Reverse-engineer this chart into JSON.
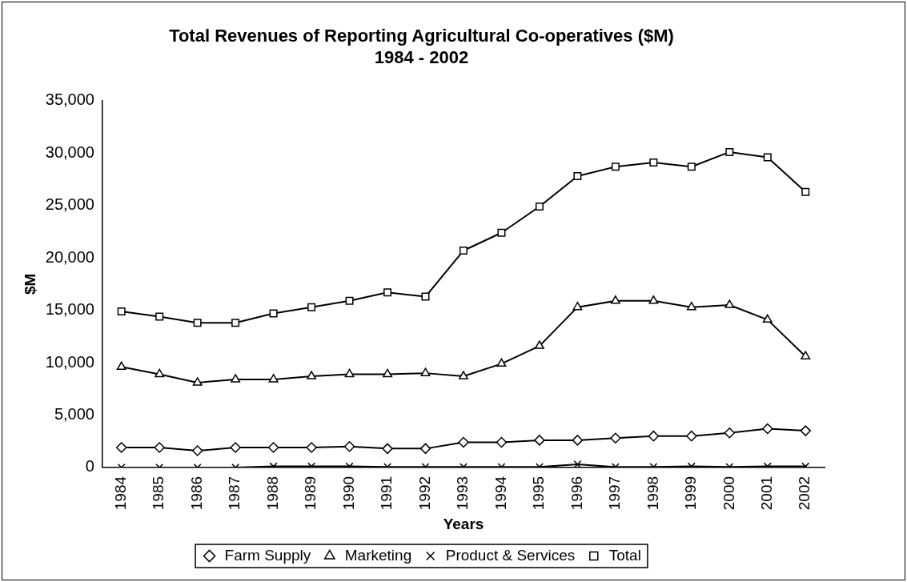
{
  "chart_data": {
    "type": "line",
    "title": "Total Revenues of Reporting Agricultural Co-operatives ($M)\n1984 - 2002",
    "xlabel": "Years",
    "ylabel": "$M",
    "categories": [
      "1984",
      "1985",
      "1986",
      "1987",
      "1988",
      "1989",
      "1990",
      "1991",
      "1992",
      "1993",
      "1994",
      "1995",
      "1996",
      "1997",
      "1998",
      "1999",
      "2000",
      "2001",
      "2002"
    ],
    "series": [
      {
        "name": "Farm Supply",
        "color": "#000000",
        "marker": "diamond",
        "values": [
          1900,
          1900,
          1600,
          1900,
          1900,
          1900,
          2000,
          1800,
          1800,
          2400,
          2400,
          2600,
          2600,
          2800,
          3000,
          3000,
          3300,
          3700,
          3500
        ]
      },
      {
        "name": "Marketing",
        "color": "#000000",
        "marker": "triangle",
        "values": [
          9600,
          8900,
          8100,
          8400,
          8400,
          8700,
          8900,
          8900,
          9000,
          8700,
          9900,
          11600,
          15300,
          15900,
          15900,
          15300,
          15500,
          14100,
          10600
        ]
      },
      {
        "name": "Product & Services",
        "color": "#000000",
        "marker": "cross",
        "values": [
          0,
          0,
          0,
          0,
          100,
          100,
          100,
          50,
          50,
          50,
          50,
          50,
          300,
          50,
          50,
          100,
          50,
          100,
          100
        ]
      },
      {
        "name": "Total",
        "color": "#000000",
        "marker": "square",
        "values": [
          14900,
          14400,
          13800,
          13800,
          14700,
          15300,
          15900,
          16700,
          16300,
          20700,
          22400,
          24900,
          27800,
          28700,
          29100,
          28700,
          30100,
          29600,
          26300
        ]
      }
    ],
    "ylim": [
      0,
      35000
    ],
    "yticks": [
      {
        "value": 0,
        "label": "0"
      },
      {
        "value": 5000,
        "label": "5,000"
      },
      {
        "value": 10000,
        "label": "10,000"
      },
      {
        "value": 15000,
        "label": "15,000"
      },
      {
        "value": 20000,
        "label": "20,000"
      },
      {
        "value": 25000,
        "label": "25,000"
      },
      {
        "value": 30000,
        "label": "30,000"
      },
      {
        "value": 35000,
        "label": "35,000"
      }
    ],
    "grid": false,
    "legend": "bottom",
    "line_style": "solid"
  }
}
